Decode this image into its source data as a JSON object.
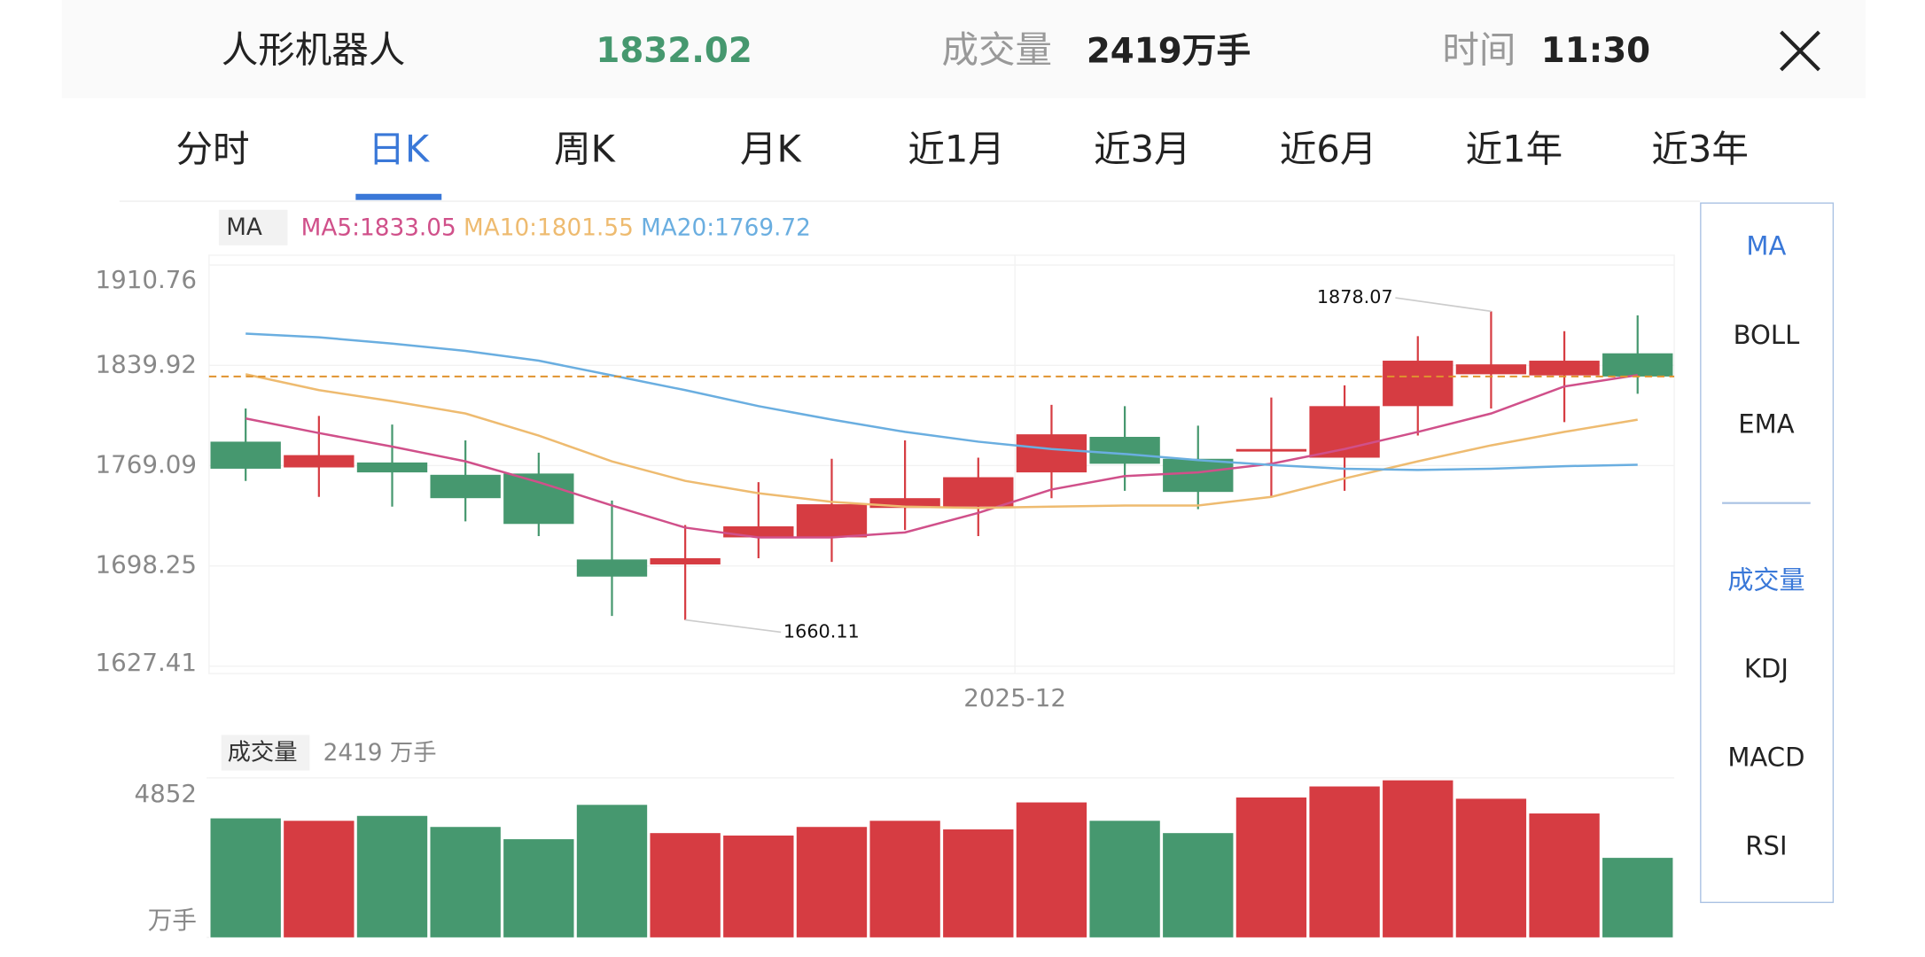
{
  "header": {
    "title": "人形机器人",
    "volume_label": "成交量",
    "time_label": "时间",
    "time": "11:30"
  },
  "tabs": {
    "items": [
      "分时",
      "日K",
      "周K",
      "月K",
      "近1月",
      "近3月",
      "近6月",
      "近1年",
      "近3年"
    ],
    "active": 1
  },
  "side_menu": {
    "main": [
      "MA",
      "BOLL",
      "EMA"
    ],
    "sub": [
      "成交量",
      "KDJ",
      "MACD",
      "RSI"
    ],
    "active_main": 0,
    "active_sub": 0
  },
  "chart_data": [
    {
      "type": "candlestick",
      "indicator": "MA",
      "legend_separator": ":",
      "categories": [
        null,
        null,
        null,
        null,
        null,
        null,
        null,
        null,
        null,
        null,
        null,
        "2025-12",
        null,
        null,
        null,
        null,
        null,
        null,
        null,
        null
      ],
      "open": [
        1786.0,
        1767.8,
        1771.3,
        1762.6,
        1763.5,
        1702.8,
        1699.3,
        1718.4,
        1718.4,
        1739.2,
        1740.1,
        1764.3,
        1789.4,
        1773.9,
        1779.0,
        1774.7,
        1811.1,
        1833.6,
        1832.8,
        1848.4
      ],
      "high": [
        1809.4,
        1804.2,
        1798.1,
        1786.9,
        1778.2,
        1744.4,
        1727.1,
        1757.4,
        1773.9,
        1786.9,
        1774.7,
        1812.0,
        1811.1,
        1797.3,
        1817.2,
        1825.8,
        1860.5,
        1878.07,
        1864.0,
        1875.2
      ],
      "low": [
        1758.3,
        1747.0,
        1740.1,
        1729.7,
        1719.3,
        1662.9,
        1660.11,
        1703.7,
        1701.1,
        1723.6,
        1719.3,
        1746.1,
        1751.3,
        1738.3,
        1747.0,
        1751.3,
        1790.3,
        1809.4,
        1799.8,
        1819.8
      ],
      "close": [
        1766.9,
        1776.5,
        1764.3,
        1746.1,
        1727.9,
        1690.7,
        1703.7,
        1726.2,
        1741.8,
        1746.1,
        1760.9,
        1791.2,
        1770.4,
        1750.5,
        1780.8,
        1811.1,
        1843.2,
        1840.6,
        1843.2,
        1832.02
      ],
      "up_color": "#d63c42",
      "down_color": "#46986f",
      "last_price_color": "#e0922e",
      "ylim": [
        1627.41,
        1910.76
      ],
      "yticks": [
        1627.41,
        1698.25,
        1769.09,
        1839.92,
        1910.76
      ],
      "grid": true,
      "series": [
        {
          "name": "MA5",
          "color": "#d0508a",
          "values": [
            1802.4,
            1792.1,
            1782.5,
            1772.1,
            1757.4,
            1740.9,
            1725.3,
            1718.4,
            1718.4,
            1721.9,
            1735.7,
            1752.2,
            1761.7,
            1764.3,
            1770.4,
            1780.8,
            1792.9,
            1805.9,
            1825.0,
            1833.05
          ]
        },
        {
          "name": "MA10",
          "color": "#eebb70",
          "values": [
            1833.6,
            1822.4,
            1814.6,
            1805.9,
            1790.3,
            1772.1,
            1758.3,
            1749.6,
            1743.5,
            1740.1,
            1739.2,
            1740.1,
            1740.9,
            1740.9,
            1747.0,
            1760.0,
            1772.1,
            1783.4,
            1792.9,
            1801.55
          ]
        },
        {
          "name": "MA20",
          "color": "#6aaee0",
          "values": [
            1862.3,
            1859.7,
            1855.3,
            1850.1,
            1843.2,
            1832.8,
            1822.4,
            1811.1,
            1801.6,
            1792.9,
            1786.0,
            1780.8,
            1777.3,
            1773.0,
            1769.5,
            1766.9,
            1766.0,
            1766.9,
            1768.7,
            1769.72
          ]
        }
      ]
    },
    {
      "type": "bar",
      "title": "成交量",
      "unit": "万手",
      "values": [
        3620,
        3546,
        3695,
        3359,
        2986,
        4031,
        3172,
        3098,
        3359,
        3546,
        3284,
        4105,
        3546,
        3172,
        4255,
        4591,
        4777,
        4217,
        3769,
        2419
      ],
      "ylim": [
        0,
        4852
      ],
      "yticks": [
        {
          "value": 0,
          "label": "万手"
        },
        4852
      ]
    }
  ]
}
